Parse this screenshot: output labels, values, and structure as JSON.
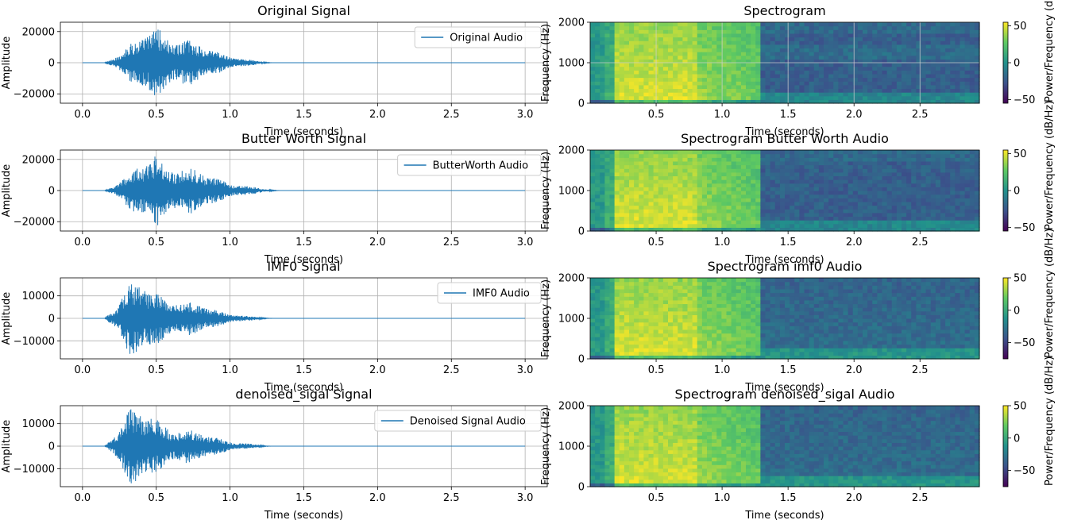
{
  "chart_data": [
    {
      "type": "line",
      "title": "Original Signal",
      "xlabel": "Time (seconds)",
      "ylabel": "Amplitude",
      "xlim": [
        -0.15,
        3.15
      ],
      "ylim": [
        -26000,
        26000
      ],
      "xticks": [
        "0.0",
        "0.5",
        "1.0",
        "1.5",
        "2.0",
        "2.5",
        "3.0"
      ],
      "yticks": [
        "20000",
        "0",
        "−20000"
      ],
      "grid": true,
      "legend": "top-right",
      "series": [
        {
          "name": "Original Audio",
          "color": "#1f77b4",
          "peak": 24000,
          "envelope": {
            "start": 0.15,
            "peak": 0.5,
            "end": 1.3,
            "duration": 3.0
          }
        }
      ]
    },
    {
      "type": "heatmap",
      "title": "Spectrogram",
      "xlabel": "Time (seconds)",
      "ylabel": "Frequency (Hz)",
      "xlim": [
        0.0,
        2.95
      ],
      "ylim": [
        0,
        2000
      ],
      "xticks": [
        "0.5",
        "1.0",
        "1.5",
        "2.0",
        "2.5"
      ],
      "yticks": [
        "2000",
        "1000",
        "0"
      ],
      "grid": true,
      "colorbar": {
        "label": "Power/Frequency (dB/Hz)",
        "ticks": [
          "50",
          "0",
          "−50"
        ],
        "range": [
          -55,
          55
        ],
        "colormap": "viridis"
      }
    },
    {
      "type": "line",
      "title": "Butter Worth Signal",
      "xlabel": "Time (seconds)",
      "ylabel": "Amplitude",
      "xlim": [
        -0.15,
        3.15
      ],
      "ylim": [
        -26000,
        26000
      ],
      "xticks": [
        "0.0",
        "0.5",
        "1.0",
        "1.5",
        "2.0",
        "2.5",
        "3.0"
      ],
      "yticks": [
        "20000",
        "0",
        "−20000"
      ],
      "grid": true,
      "legend": "top-right",
      "series": [
        {
          "name": "ButterWorth Audio",
          "color": "#1f77b4",
          "peak": 24000,
          "envelope": {
            "start": 0.15,
            "peak": 0.5,
            "end": 1.35,
            "duration": 3.0
          }
        }
      ]
    },
    {
      "type": "heatmap",
      "title": "Spectrogram Butter Worth Audio",
      "xlabel": "Time (seconds)",
      "ylabel": "Frequency (Hz)",
      "xlim": [
        0.0,
        2.95
      ],
      "ylim": [
        0,
        2000
      ],
      "xticks": [
        "0.5",
        "1.0",
        "1.5",
        "2.0",
        "2.5"
      ],
      "yticks": [
        "2000",
        "1000",
        "0"
      ],
      "grid": false,
      "colorbar": {
        "label": "Power/Frequency (dB/Hz)",
        "ticks": [
          "50",
          "0",
          "−50"
        ],
        "range": [
          -55,
          55
        ],
        "colormap": "viridis"
      }
    },
    {
      "type": "line",
      "title": "IMF0 Signal",
      "xlabel": "Time (seconds)",
      "ylabel": "Amplitude",
      "xlim": [
        -0.15,
        3.15
      ],
      "ylim": [
        -18000,
        18000
      ],
      "xticks": [
        "0.0",
        "0.5",
        "1.0",
        "1.5",
        "2.0",
        "2.5",
        "3.0"
      ],
      "yticks": [
        "10000",
        "0",
        "−10000"
      ],
      "grid": true,
      "legend": "top-right",
      "series": [
        {
          "name": "IMF0 Audio",
          "color": "#1f77b4",
          "peak": 17000,
          "envelope": {
            "start": 0.15,
            "peak": 0.33,
            "end": 1.3,
            "duration": 3.0
          }
        }
      ]
    },
    {
      "type": "heatmap",
      "title": "Spectrogram imf0 Audio",
      "xlabel": "Time (seconds)",
      "ylabel": "Frequency (Hz)",
      "xlim": [
        0.0,
        2.95
      ],
      "ylim": [
        0,
        2000
      ],
      "xticks": [
        "0.5",
        "1.0",
        "1.5",
        "2.0",
        "2.5"
      ],
      "yticks": [
        "2000",
        "1000",
        "0"
      ],
      "grid": false,
      "colorbar": {
        "label": "Power/Frequency (dB/Hz)",
        "ticks": [
          "50",
          "0",
          "−50"
        ],
        "range": [
          -75,
          50
        ],
        "colormap": "viridis"
      }
    },
    {
      "type": "line",
      "title": "denoised_sigal Signal",
      "xlabel": "Time (seconds)",
      "ylabel": "Amplitude",
      "xlim": [
        -0.15,
        3.15
      ],
      "ylim": [
        -18000,
        18000
      ],
      "xticks": [
        "0.0",
        "0.5",
        "1.0",
        "1.5",
        "2.0",
        "2.5",
        "3.0"
      ],
      "yticks": [
        "10000",
        "0",
        "−10000"
      ],
      "grid": true,
      "legend": "top-right",
      "series": [
        {
          "name": "Denoised Signal Audio",
          "color": "#1f77b4",
          "peak": 17000,
          "envelope": {
            "start": 0.15,
            "peak": 0.33,
            "end": 1.3,
            "duration": 3.0
          }
        }
      ]
    },
    {
      "type": "heatmap",
      "title": "Spectrogram denoised_sigal Audio",
      "xlabel": "Time (seconds)",
      "ylabel": "Frequency (Hz)",
      "xlim": [
        0.0,
        2.95
      ],
      "ylim": [
        0,
        2000
      ],
      "xticks": [
        "0.5",
        "1.0",
        "1.5",
        "2.0",
        "2.5"
      ],
      "yticks": [
        "2000",
        "1000",
        "0"
      ],
      "grid": false,
      "colorbar": {
        "label": "Power/Frequency (dB/Hz)",
        "ticks": [
          "50",
          "0",
          "−50"
        ],
        "range": [
          -75,
          50
        ],
        "colormap": "viridis"
      }
    }
  ]
}
